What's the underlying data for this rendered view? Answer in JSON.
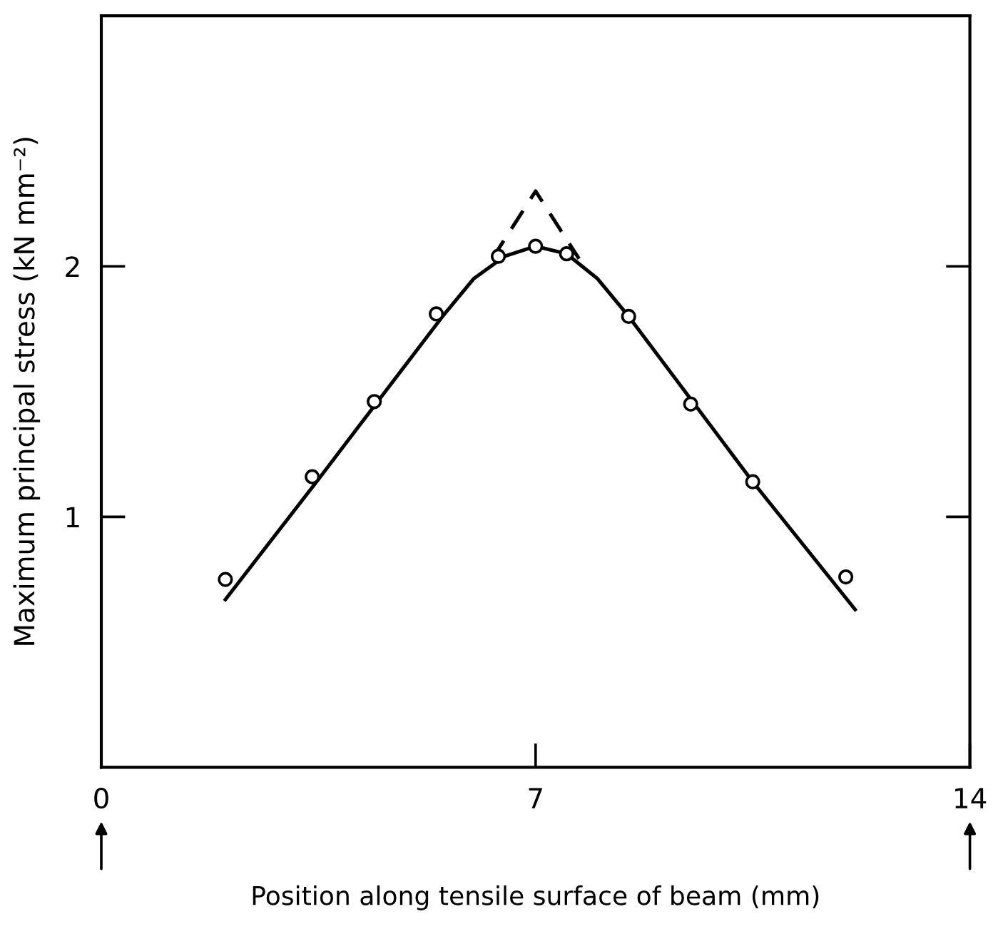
{
  "chart_data": {
    "type": "line",
    "xlabel": "Position along tensile surface of beam (mm)",
    "ylabel": "Maximum principal stress (kN mm⁻²)",
    "series": [
      {
        "type": "scatter",
        "color": "#000000",
        "marker": "circle",
        "x": [
          2.0,
          3.4,
          4.4,
          5.4,
          6.4,
          7.0,
          7.5,
          8.5,
          9.5,
          10.5,
          12.0
        ],
        "values": [
          0.75,
          1.16,
          1.46,
          1.81,
          2.04,
          2.08,
          2.05,
          1.8,
          1.45,
          1.14,
          0.76
        ]
      },
      {
        "color": "#000000",
        "line_style": "solid",
        "x": [
          2.0,
          3.5,
          5.5,
          6.0,
          6.5,
          7.0,
          7.5,
          8.0,
          8.5,
          10.5,
          12.15
        ],
        "values": [
          0.67,
          1.15,
          1.8,
          1.95,
          2.04,
          2.08,
          2.05,
          1.95,
          1.8,
          1.14,
          0.63
        ]
      },
      {
        "color": "#000000",
        "line_style": "dashed",
        "x": [
          6.3,
          7.0,
          7.7
        ],
        "values": [
          2.03,
          2.3,
          2.03
        ]
      }
    ],
    "xlim": [
      0,
      14
    ],
    "ylim": [
      0,
      3
    ],
    "xticks": [
      0,
      7,
      14
    ],
    "yticks": [
      1,
      2
    ],
    "grid": false,
    "legend": false
  }
}
